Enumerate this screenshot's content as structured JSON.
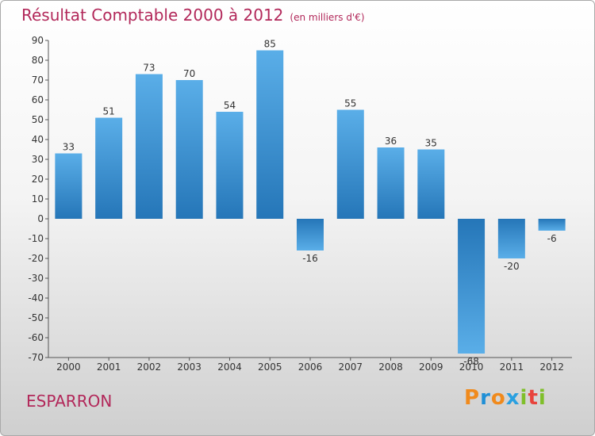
{
  "title": "Résultat Comptable 2000 à 2012",
  "subtitle": "(en milliers d'€)",
  "place": "ESPARRON",
  "logo": {
    "letters": [
      "P",
      "r",
      "o",
      "x",
      "i",
      "t",
      "i"
    ],
    "colors": [
      "#f08a1c",
      "#1f8fd6",
      "#f08a1c",
      "#2aa0e0",
      "#7fbf2a",
      "#e8433c",
      "#7fbf2a"
    ]
  },
  "colors": {
    "title": "#b2285a",
    "bar_light": "#5aaee8",
    "bar_dark": "#2576b8"
  },
  "chart_data": {
    "type": "bar",
    "title": "Résultat Comptable 2000 à 2012",
    "categories": [
      "2000",
      "2001",
      "2002",
      "2003",
      "2004",
      "2005",
      "2006",
      "2007",
      "2008",
      "2009",
      "2010",
      "2011",
      "2012"
    ],
    "values": [
      33,
      51,
      73,
      70,
      54,
      85,
      -16,
      55,
      36,
      35,
      -68,
      -20,
      -6
    ],
    "ylim": [
      -70,
      90
    ],
    "yticks": [
      90,
      80,
      70,
      60,
      50,
      40,
      30,
      20,
      10,
      0,
      -10,
      -20,
      -30,
      -40,
      -50,
      -60,
      -70
    ],
    "grid": false
  }
}
